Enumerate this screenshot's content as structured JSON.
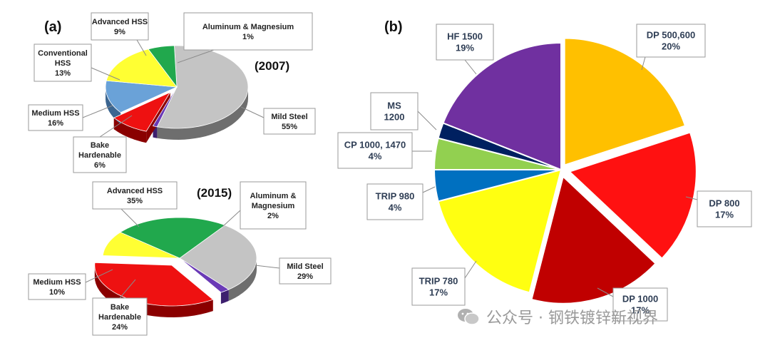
{
  "panels": {
    "a": "(a)",
    "b": "(b)"
  },
  "chart_data": [
    {
      "type": "pie",
      "title": "(2007)",
      "slices": [
        {
          "label": "Mild Steel",
          "value": 55,
          "display": "55%",
          "color": "#c4c4c4",
          "side": "#6e6e6e"
        },
        {
          "label": "Aluminum & Magnesium",
          "value": 1,
          "display": "1%",
          "color": "#6a3ab6",
          "side": "#3d1f6e"
        },
        {
          "label": "Advanced HSS",
          "value": 9,
          "display": "9%",
          "color": "#ee1111",
          "side": "#8a0000"
        },
        {
          "label": "Conventional HSS",
          "value": 13,
          "display": "13%",
          "color": "#6aa2d8",
          "side": "#3b6590"
        },
        {
          "label": "Medium HSS",
          "value": 16,
          "display": "16%",
          "color": "#ffff33",
          "side": "#c8b400"
        },
        {
          "label": "Bake Hardenable",
          "value": 6,
          "display": "6%",
          "color": "#21a84d",
          "side": "#0f6a2c"
        }
      ]
    },
    {
      "type": "pie",
      "title": "(2015)",
      "slices": [
        {
          "label": "Mild Steel",
          "value": 29,
          "display": "29%",
          "color": "#c4c4c4",
          "side": "#6e6e6e"
        },
        {
          "label": "Aluminum & Magnesium",
          "value": 2,
          "display": "2%",
          "color": "#6a3ab6",
          "side": "#3d1f6e"
        },
        {
          "label": "Advanced HSS",
          "value": 35,
          "display": "35%",
          "color": "#ee1111",
          "side": "#8a0000"
        },
        {
          "label": "Medium HSS",
          "value": 10,
          "display": "10%",
          "color": "#ffff33",
          "side": "#c8b400"
        },
        {
          "label": "Bake Hardenable",
          "value": 24,
          "display": "24%",
          "color": "#21a84d",
          "side": "#0f6a2c"
        }
      ]
    },
    {
      "type": "pie",
      "title": "",
      "slices": [
        {
          "label": "DP 500,600",
          "value": 20,
          "display": "20%",
          "color": "#ffc000"
        },
        {
          "label": "DP 800",
          "value": 17,
          "display": "17%",
          "color": "#ff1111"
        },
        {
          "label": "DP 1000",
          "value": 17,
          "display": "17%",
          "color": "#c00000"
        },
        {
          "label": "TRIP 780",
          "value": 17,
          "display": "17%",
          "color": "#ffff11"
        },
        {
          "label": "TRIP 980",
          "value": 4,
          "display": "4%",
          "color": "#0070c0"
        },
        {
          "label": "CP 1000, 1470",
          "value": 4,
          "display": "4%",
          "color": "#92d050"
        },
        {
          "label": "MS 1200",
          "value": 2,
          "display": "",
          "color": "#002060"
        },
        {
          "label": "HF 1500",
          "value": 19,
          "display": "19%",
          "color": "#7030a0"
        }
      ]
    }
  ],
  "labels_a1": [
    {
      "lines": [
        "Advanced HSS",
        "9%"
      ]
    },
    {
      "lines": [
        "Aluminum & Magnesium",
        "1%"
      ]
    },
    {
      "lines": [
        "Conventional",
        "HSS",
        "13%"
      ]
    },
    {
      "lines": [
        "Medium HSS",
        "16%"
      ]
    },
    {
      "lines": [
        "Bake",
        "Hardenable",
        "6%"
      ]
    },
    {
      "lines": [
        "Mild Steel",
        "55%"
      ]
    }
  ],
  "labels_a2": [
    {
      "lines": [
        "Advanced HSS",
        "35%"
      ]
    },
    {
      "lines": [
        "Aluminum &",
        "Magnesium",
        "2%"
      ]
    },
    {
      "lines": [
        "Medium HSS",
        "10%"
      ]
    },
    {
      "lines": [
        "Bake",
        "Hardenable",
        "24%"
      ]
    },
    {
      "lines": [
        "Mild Steel",
        "29%"
      ]
    }
  ],
  "labels_b": [
    {
      "lines": [
        "DP 500,600",
        "20%"
      ]
    },
    {
      "lines": [
        "HF 1500",
        "19%"
      ]
    },
    {
      "lines": [
        "MS",
        "1200"
      ]
    },
    {
      "lines": [
        "CP 1000, 1470",
        "4%"
      ]
    },
    {
      "lines": [
        "TRIP 980",
        "4%"
      ]
    },
    {
      "lines": [
        "DP 800",
        "17%"
      ]
    },
    {
      "lines": [
        "TRIP 780",
        "17%"
      ]
    },
    {
      "lines": [
        "DP 1000",
        "17%"
      ]
    }
  ],
  "watermark": "公众号 · 钢铁镀锌新视界"
}
